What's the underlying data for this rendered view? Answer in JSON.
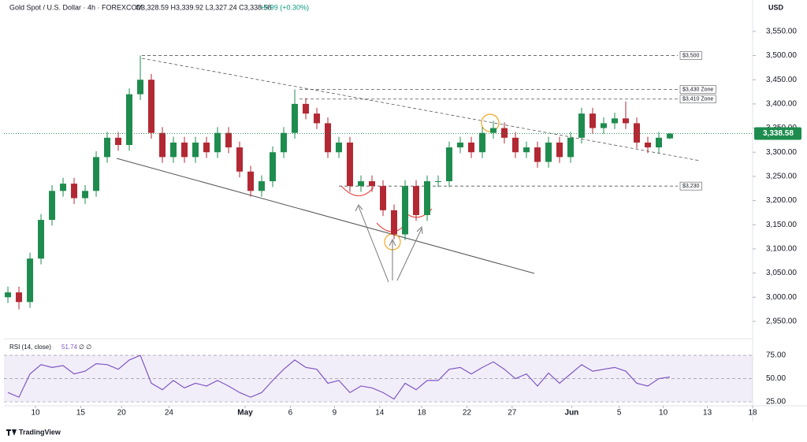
{
  "chart_data": {
    "type": "candlestick",
    "symbol": "Gold Spot / U.S. Dollar · 4h · FOREXCOM",
    "ohlc_text": "O3,328.59 H3,339.92 L3,327.24 C3,338.58",
    "change_text": "+9.99 (+0.30%)",
    "currency": "USD",
    "last_price_label": "3,338.58",
    "up_color": "#1e8c4e",
    "down_color": "#b22833",
    "open": [
      3000,
      3010,
      2990,
      3080,
      3160,
      3220,
      3235,
      3205,
      3220,
      3290,
      3330,
      3315,
      3420,
      3450,
      3340,
      3290,
      3320,
      3290,
      3320,
      3300,
      3340,
      3310,
      3260,
      3220,
      3240,
      3300,
      3340,
      3400,
      3380,
      3360,
      3300,
      3320,
      3230,
      3240,
      3230,
      3180,
      3130,
      3230,
      3170,
      3240,
      3240,
      3310,
      3320,
      3300,
      3340,
      3350,
      3330,
      3300,
      3310,
      3280,
      3320,
      3290,
      3330,
      3380,
      3350,
      3360,
      3370,
      3360,
      3320,
      3310,
      3328.59
    ],
    "high": [
      3022,
      3022,
      3092,
      3172,
      3232,
      3247,
      3247,
      3232,
      3302,
      3342,
      3342,
      3432,
      3500,
      3462,
      3352,
      3332,
      3332,
      3332,
      3332,
      3352,
      3352,
      3322,
      3272,
      3252,
      3312,
      3352,
      3430,
      3412,
      3392,
      3372,
      3332,
      3332,
      3252,
      3252,
      3242,
      3192,
      3242,
      3242,
      3252,
      3252,
      3322,
      3332,
      3332,
      3352,
      3365,
      3362,
      3342,
      3322,
      3322,
      3332,
      3332,
      3342,
      3392,
      3392,
      3372,
      3382,
      3405,
      3372,
      3332,
      3342,
      3339.92
    ],
    "low": [
      2988,
      2975,
      2978,
      3068,
      3148,
      3208,
      3193,
      3193,
      3208,
      3278,
      3303,
      3303,
      3408,
      3328,
      3278,
      3278,
      3278,
      3278,
      3288,
      3288,
      3298,
      3248,
      3208,
      3208,
      3228,
      3288,
      3328,
      3368,
      3348,
      3288,
      3288,
      3218,
      3218,
      3218,
      3168,
      3120,
      3118,
      3158,
      3158,
      3228,
      3228,
      3298,
      3288,
      3288,
      3328,
      3318,
      3288,
      3288,
      3268,
      3268,
      3278,
      3278,
      3318,
      3338,
      3338,
      3348,
      3348,
      3308,
      3298,
      3298,
      3327.24
    ],
    "close": [
      3010,
      2990,
      3080,
      3160,
      3220,
      3235,
      3205,
      3220,
      3290,
      3330,
      3315,
      3420,
      3450,
      3340,
      3290,
      3320,
      3290,
      3320,
      3300,
      3340,
      3310,
      3260,
      3220,
      3240,
      3300,
      3340,
      3400,
      3380,
      3360,
      3300,
      3320,
      3230,
      3240,
      3230,
      3180,
      3130,
      3230,
      3170,
      3240,
      3240,
      3310,
      3320,
      3300,
      3340,
      3350,
      3330,
      3300,
      3310,
      3280,
      3320,
      3290,
      3330,
      3380,
      3350,
      3360,
      3370,
      3360,
      3320,
      3310,
      3330,
      3338.58
    ],
    "xlim": [
      -0.36,
      67.5
    ],
    "xticks": [
      {
        "value": 2.5,
        "label": "10"
      },
      {
        "value": 6.6,
        "label": "15"
      },
      {
        "value": 10.3,
        "label": "20"
      },
      {
        "value": 14.6,
        "label": "24"
      },
      {
        "value": 21.5,
        "label": "May"
      },
      {
        "value": 25.6,
        "label": "6"
      },
      {
        "value": 29.6,
        "label": "9"
      },
      {
        "value": 33.7,
        "label": "14"
      },
      {
        "value": 37.5,
        "label": "18"
      },
      {
        "value": 41.6,
        "label": "22"
      },
      {
        "value": 45.7,
        "label": "27"
      },
      {
        "value": 51.1,
        "label": "Jun"
      },
      {
        "value": 55.4,
        "label": "5"
      },
      {
        "value": 59.4,
        "label": "10"
      },
      {
        "value": 63.4,
        "label": "13"
      },
      {
        "value": 67.5,
        "label": "18"
      }
    ],
    "ylim": [
      2914,
      3615
    ],
    "yticks": [
      {
        "value": 2950,
        "label": "2,950.00"
      },
      {
        "value": 3000,
        "label": "3,000.00"
      },
      {
        "value": 3050,
        "label": "3,050.00"
      },
      {
        "value": 3100,
        "label": "3,100.00"
      },
      {
        "value": 3150,
        "label": "3,150.00"
      },
      {
        "value": 3200,
        "label": "3,200.00"
      },
      {
        "value": 3250,
        "label": "3,250.00"
      },
      {
        "value": 3300,
        "label": "3,300.00"
      },
      {
        "value": 3350,
        "label": "3,350.00"
      },
      {
        "value": 3400,
        "label": "3,400.00"
      },
      {
        "value": 3450,
        "label": "3,450.00"
      },
      {
        "value": 3500,
        "label": "3,500.00"
      },
      {
        "value": 3550,
        "label": "3,550.00"
      }
    ],
    "levels": [
      {
        "value": 3500,
        "label": "$3,500"
      },
      {
        "value": 3430,
        "label": "$3,430 Zone"
      },
      {
        "value": 3410,
        "label": "$3,410 Zone"
      },
      {
        "value": 3230,
        "label": "$3,230"
      }
    ],
    "rsi": {
      "title": "RSI (14, close)",
      "last_label": "51.74",
      "extra": "∅ ∅",
      "color": "#7e57c2",
      "values": [
        35,
        30,
        55,
        65,
        62,
        64,
        55,
        58,
        66,
        65,
        60,
        70,
        75,
        45,
        38,
        48,
        40,
        45,
        42,
        48,
        42,
        35,
        30,
        35,
        48,
        60,
        70,
        62,
        60,
        45,
        48,
        35,
        42,
        40,
        35,
        28,
        45,
        38,
        48,
        48,
        60,
        62,
        55,
        62,
        68,
        60,
        50,
        55,
        42,
        56,
        45,
        55,
        65,
        58,
        60,
        62,
        58,
        45,
        42,
        50,
        51.74
      ],
      "ylim": [
        20.8,
        91.1
      ],
      "yticks": [
        {
          "value": 25,
          "label": "25.00"
        },
        {
          "value": 50,
          "label": "50.00"
        },
        {
          "value": 75,
          "label": "75.00"
        }
      ]
    },
    "brand": "TradingView"
  }
}
